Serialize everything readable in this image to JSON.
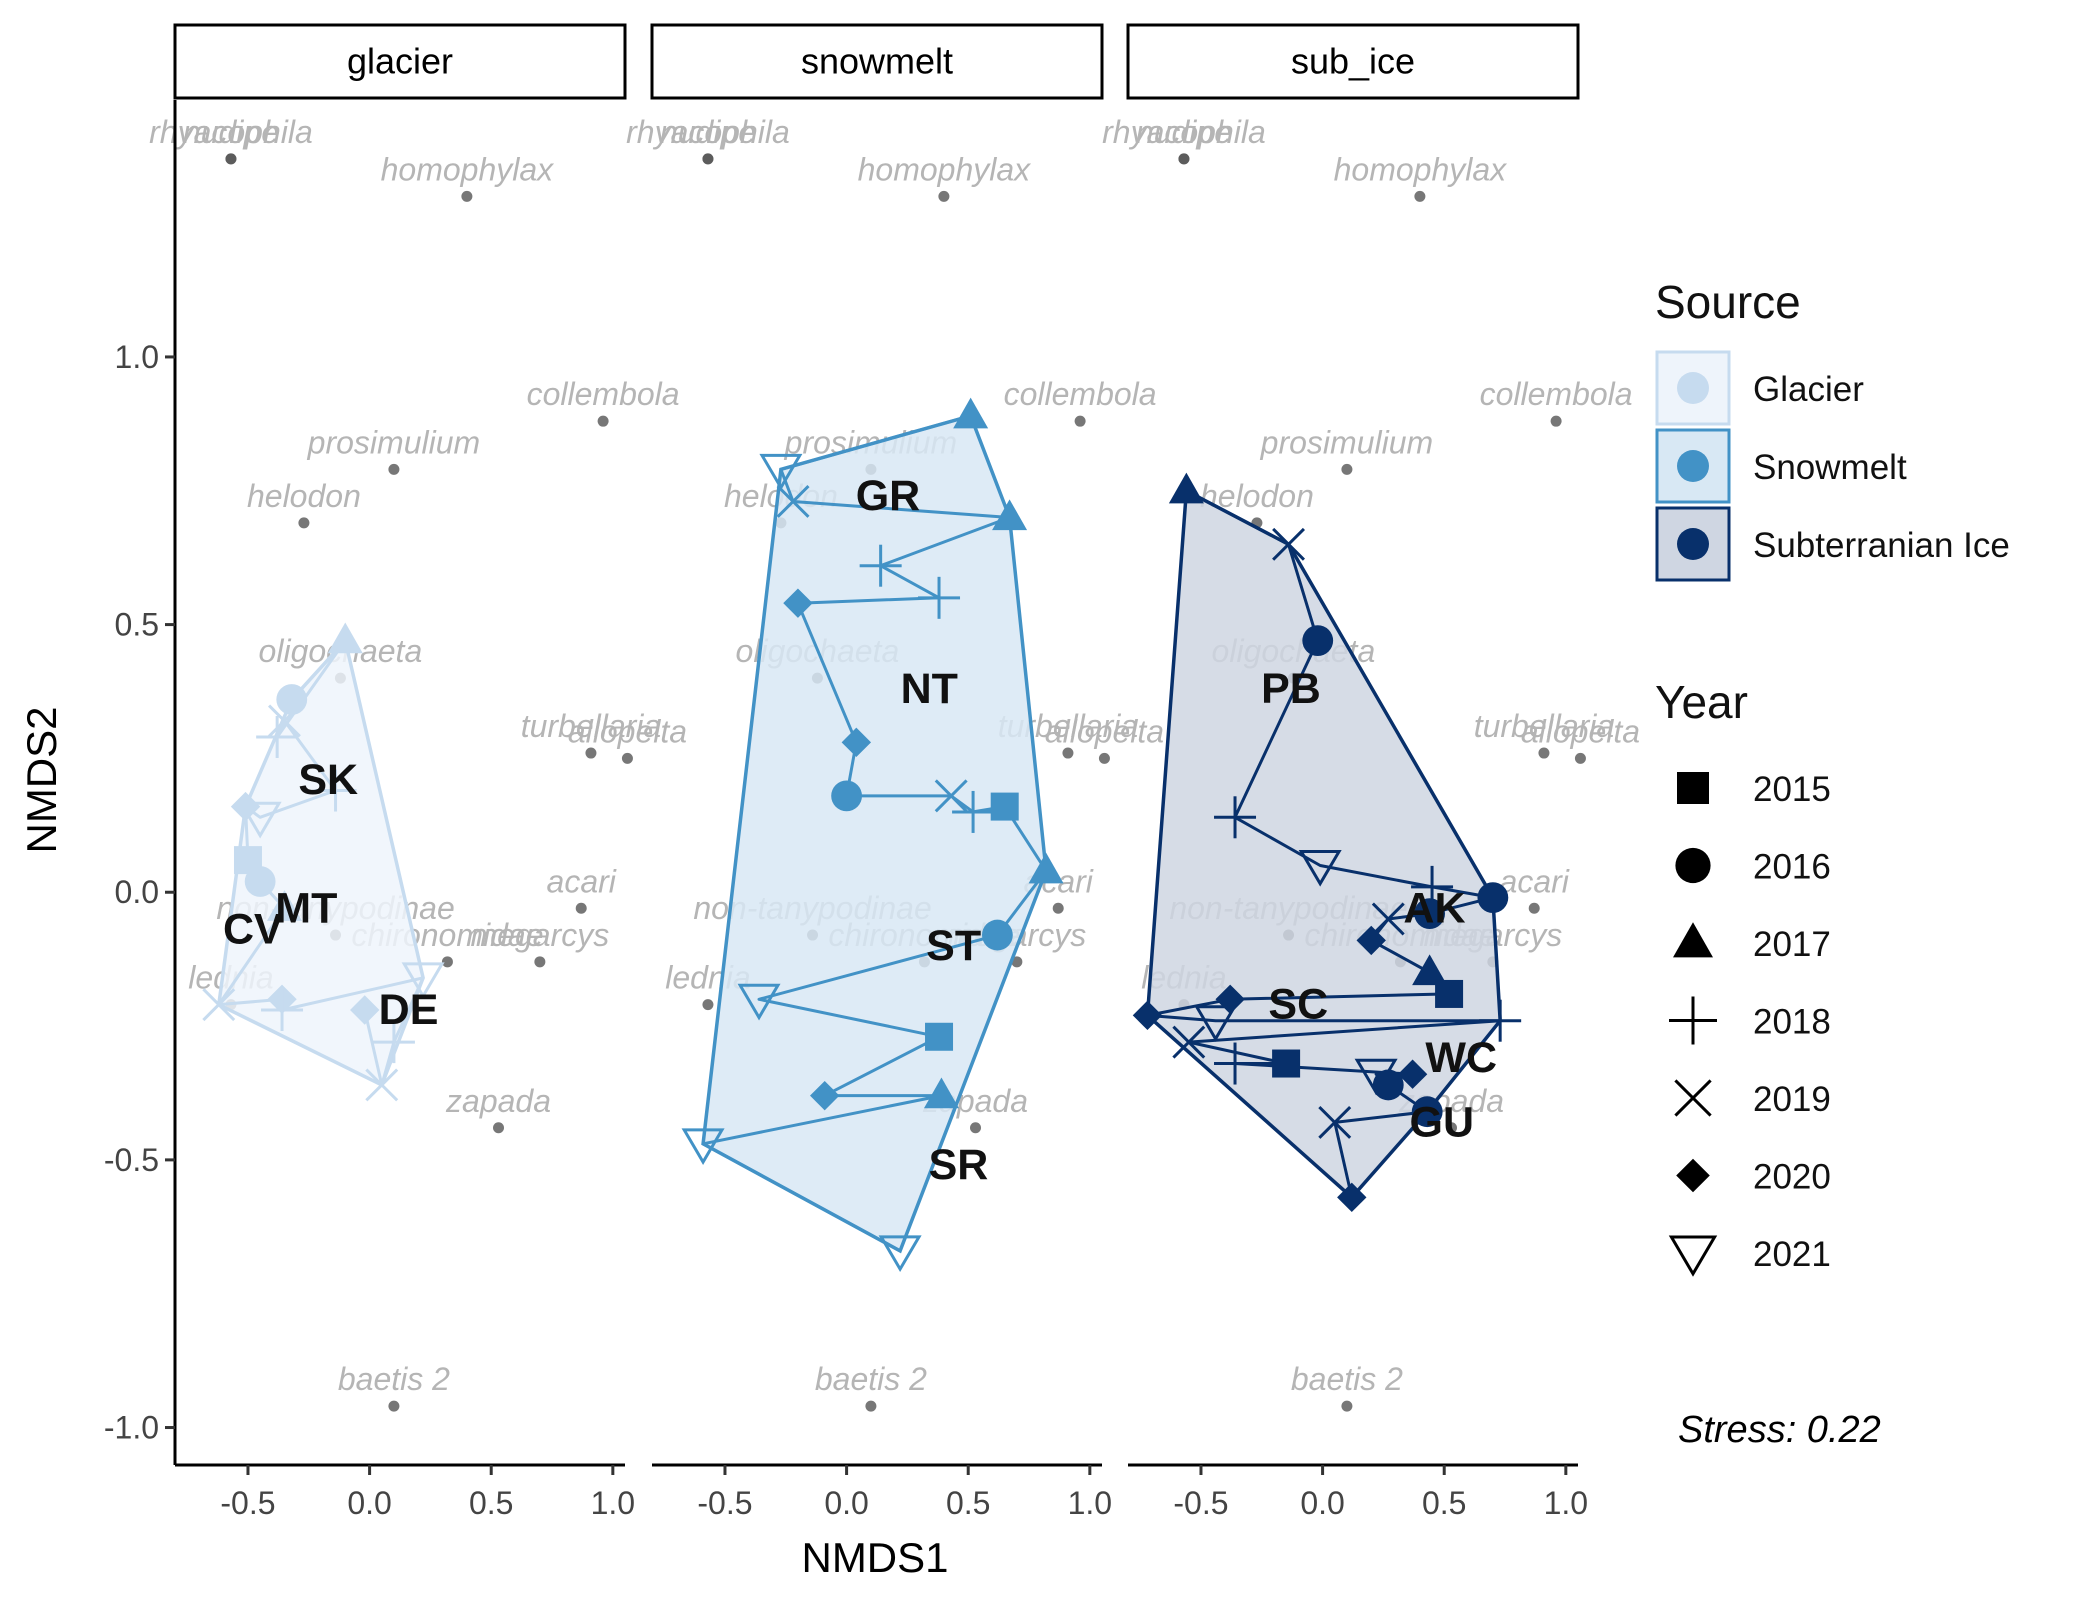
{
  "chart_data": {
    "type": "scatter",
    "xlabel": "NMDS1",
    "ylabel": "NMDS2",
    "xlim": [
      -0.8,
      1.05
    ],
    "ylim": [
      -1.07,
      1.48
    ],
    "xticks": [
      -0.5,
      0.0,
      0.5,
      1.0
    ],
    "xtick_labels": [
      "-0.5",
      "0.0",
      "0.5",
      "1.0"
    ],
    "yticks": [
      -1.0,
      -0.5,
      0.0,
      0.5,
      1.0
    ],
    "ytick_labels": [
      "-1.0",
      "-0.5",
      "0.0",
      "0.5",
      "1.0"
    ],
    "grid": false,
    "panels": [
      {
        "key": "glacier",
        "label": "glacier",
        "source": "Glacier"
      },
      {
        "key": "snowmelt",
        "label": "snowmelt",
        "source": "Snowmelt"
      },
      {
        "key": "sub_ice",
        "label": "sub_ice",
        "source": "Subterranian Ice"
      }
    ],
    "colors": {
      "Glacier": "#c6dbef",
      "Snowmelt": "#4292c6",
      "Subterranian Ice": "#08306b"
    },
    "hull_fill": {
      "Glacier": "#eef4fb",
      "Snowmelt": "#d8e8f4",
      "Subterranian Ice": "#cfd6e2"
    },
    "species": [
      {
        "name": "nudipe",
        "x": -0.57,
        "y": 1.37
      },
      {
        "name": "rhyacophila",
        "x": -0.57,
        "y": 1.37
      },
      {
        "name": "homophylax",
        "x": 0.4,
        "y": 1.3
      },
      {
        "name": "collembola",
        "x": 0.96,
        "y": 0.88
      },
      {
        "name": "prosimulium",
        "x": 0.1,
        "y": 0.79
      },
      {
        "name": "helodon",
        "x": -0.27,
        "y": 0.69
      },
      {
        "name": "oligochaeta",
        "x": -0.12,
        "y": 0.4
      },
      {
        "name": "turbellaria",
        "x": 0.91,
        "y": 0.26
      },
      {
        "name": "allopelta",
        "x": 1.06,
        "y": 0.25
      },
      {
        "name": "acari",
        "x": 0.87,
        "y": -0.03
      },
      {
        "name": "non-tanypodinae",
        "x": -0.14,
        "y": -0.08
      },
      {
        "name": "chironomidae",
        "x": 0.32,
        "y": -0.13
      },
      {
        "name": "megarcys",
        "x": 0.7,
        "y": -0.13
      },
      {
        "name": "lednia",
        "x": -0.57,
        "y": -0.21
      },
      {
        "name": "zapada",
        "x": 0.53,
        "y": -0.44
      },
      {
        "name": "baetis 2",
        "x": 0.1,
        "y": -0.96
      }
    ],
    "points": {
      "glacier": [
        {
          "year": "2016",
          "x": -0.32,
          "y": 0.36
        },
        {
          "year": "2017",
          "x": -0.1,
          "y": 0.47
        },
        {
          "year": "2018",
          "x": -0.38,
          "y": 0.29
        },
        {
          "year": "2019",
          "x": -0.35,
          "y": 0.32
        },
        {
          "year": "2018",
          "x": -0.14,
          "y": 0.19
        },
        {
          "year": "2021",
          "x": -0.45,
          "y": 0.14
        },
        {
          "year": "2020",
          "x": -0.51,
          "y": 0.16
        },
        {
          "year": "2015",
          "x": -0.5,
          "y": 0.06
        },
        {
          "year": "2016",
          "x": -0.45,
          "y": 0.02
        },
        {
          "year": "2017",
          "x": -0.35,
          "y": -0.03
        },
        {
          "year": "2019",
          "x": -0.62,
          "y": -0.21
        },
        {
          "year": "2020",
          "x": -0.36,
          "y": -0.2
        },
        {
          "year": "2018",
          "x": -0.36,
          "y": -0.22
        },
        {
          "year": "2021",
          "x": 0.22,
          "y": -0.16
        },
        {
          "year": "2018",
          "x": 0.1,
          "y": -0.28
        },
        {
          "year": "2019",
          "x": 0.05,
          "y": -0.36
        },
        {
          "year": "2020",
          "x": -0.02,
          "y": -0.22
        }
      ],
      "snowmelt": [
        {
          "year": "2017",
          "x": 0.51,
          "y": 0.89
        },
        {
          "year": "2021",
          "x": -0.27,
          "y": 0.79
        },
        {
          "year": "2019",
          "x": -0.22,
          "y": 0.73
        },
        {
          "year": "2017",
          "x": 0.67,
          "y": 0.7
        },
        {
          "year": "2018",
          "x": 0.14,
          "y": 0.61
        },
        {
          "year": "2018",
          "x": 0.38,
          "y": 0.55
        },
        {
          "year": "2020",
          "x": -0.2,
          "y": 0.54
        },
        {
          "year": "2020",
          "x": 0.04,
          "y": 0.28
        },
        {
          "year": "2016",
          "x": 0.0,
          "y": 0.18
        },
        {
          "year": "2019",
          "x": 0.43,
          "y": 0.18
        },
        {
          "year": "2018",
          "x": 0.52,
          "y": 0.15
        },
        {
          "year": "2015",
          "x": 0.65,
          "y": 0.16
        },
        {
          "year": "2017",
          "x": 0.82,
          "y": 0.04
        },
        {
          "year": "2016",
          "x": 0.62,
          "y": -0.08
        },
        {
          "year": "2021",
          "x": -0.36,
          "y": -0.2
        },
        {
          "year": "2015",
          "x": 0.38,
          "y": -0.27
        },
        {
          "year": "2020",
          "x": -0.09,
          "y": -0.38
        },
        {
          "year": "2017",
          "x": 0.39,
          "y": -0.38
        },
        {
          "year": "2021",
          "x": -0.59,
          "y": -0.47
        },
        {
          "year": "2021",
          "x": 0.22,
          "y": -0.67
        }
      ],
      "sub_ice": [
        {
          "year": "2017",
          "x": -0.56,
          "y": 0.75
        },
        {
          "year": "2019",
          "x": -0.14,
          "y": 0.65
        },
        {
          "year": "2016",
          "x": -0.02,
          "y": 0.47
        },
        {
          "year": "2018",
          "x": -0.36,
          "y": 0.14
        },
        {
          "year": "2021",
          "x": -0.01,
          "y": 0.05
        },
        {
          "year": "2018",
          "x": 0.45,
          "y": 0.01
        },
        {
          "year": "2016",
          "x": 0.7,
          "y": -0.01
        },
        {
          "year": "2016",
          "x": 0.44,
          "y": -0.04
        },
        {
          "year": "2019",
          "x": 0.27,
          "y": -0.05
        },
        {
          "year": "2020",
          "x": 0.2,
          "y": -0.09
        },
        {
          "year": "2017",
          "x": 0.44,
          "y": -0.15
        },
        {
          "year": "2015",
          "x": 0.52,
          "y": -0.19
        },
        {
          "year": "2020",
          "x": -0.38,
          "y": -0.2
        },
        {
          "year": "2020",
          "x": -0.72,
          "y": -0.23
        },
        {
          "year": "2021",
          "x": -0.44,
          "y": -0.24
        },
        {
          "year": "2018",
          "x": 0.73,
          "y": -0.24
        },
        {
          "year": "2019",
          "x": -0.55,
          "y": -0.28
        },
        {
          "year": "2015",
          "x": -0.15,
          "y": -0.32
        },
        {
          "year": "2018",
          "x": -0.36,
          "y": -0.32
        },
        {
          "year": "2020",
          "x": 0.37,
          "y": -0.34
        },
        {
          "year": "2021",
          "x": 0.22,
          "y": -0.34
        },
        {
          "year": "2016",
          "x": 0.27,
          "y": -0.36
        },
        {
          "year": "2016",
          "x": 0.43,
          "y": -0.41
        },
        {
          "year": "2019",
          "x": 0.05,
          "y": -0.43
        },
        {
          "year": "2020",
          "x": 0.12,
          "y": -0.57
        }
      ]
    },
    "site_labels": {
      "glacier": [
        {
          "text": "SK",
          "x": -0.17,
          "y": 0.21
        },
        {
          "text": "MT",
          "x": -0.26,
          "y": -0.03
        },
        {
          "text": "CV",
          "x": -0.48,
          "y": -0.07
        },
        {
          "text": "DE",
          "x": 0.16,
          "y": -0.22
        }
      ],
      "snowmelt": [
        {
          "text": "GR",
          "x": 0.17,
          "y": 0.74
        },
        {
          "text": "NT",
          "x": 0.34,
          "y": 0.38
        },
        {
          "text": "ST",
          "x": 0.44,
          "y": -0.1
        },
        {
          "text": "SR",
          "x": 0.46,
          "y": -0.51
        }
      ],
      "sub_ice": [
        {
          "text": "PB",
          "x": -0.13,
          "y": 0.38
        },
        {
          "text": "AK",
          "x": 0.46,
          "y": -0.03
        },
        {
          "text": "SC",
          "x": -0.1,
          "y": -0.21
        },
        {
          "text": "WC",
          "x": 0.57,
          "y": -0.31
        },
        {
          "text": "GU",
          "x": 0.49,
          "y": -0.43
        }
      ]
    },
    "legend": {
      "placement": "right",
      "source_title": "Source",
      "sources": [
        "Glacier",
        "Snowmelt",
        "Subterranian Ice"
      ],
      "year_title": "Year",
      "years": [
        "2015",
        "2016",
        "2017",
        "2018",
        "2019",
        "2020",
        "2021"
      ],
      "year_shapes": {
        "2015": "square",
        "2016": "circle",
        "2017": "triangle",
        "2018": "plus",
        "2019": "cross",
        "2020": "diamond",
        "2021": "triangle-down-open"
      }
    },
    "annotation": "Stress:  0.22"
  }
}
